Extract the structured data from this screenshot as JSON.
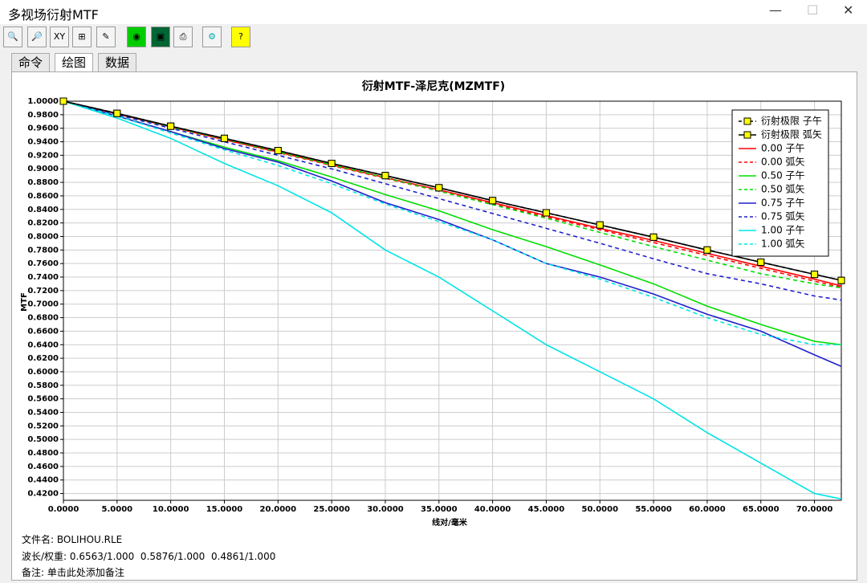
{
  "window": {
    "title": "多视场衍射MTF"
  },
  "tabs": [
    "命令",
    "绘图",
    "数据"
  ],
  "chart_data": {
    "type": "line",
    "title": "衍射MTF-泽尼克(MZMTF)",
    "x_label": "线对/毫米",
    "y_label": "MTF",
    "grid": true,
    "legend": "upper right",
    "xlim": [
      0,
      72.5
    ],
    "ylim": [
      0.41,
      1.0
    ],
    "xticks": [
      {
        "value": 0,
        "label": "0.0000"
      },
      {
        "value": 5,
        "label": "5.0000"
      },
      {
        "value": 10,
        "label": "10.0000"
      },
      {
        "value": 15,
        "label": "15.0000"
      },
      {
        "value": 20,
        "label": "20.0000"
      },
      {
        "value": 25,
        "label": "25.0000"
      },
      {
        "value": 30,
        "label": "30.0000"
      },
      {
        "value": 35,
        "label": "35.0000"
      },
      {
        "value": 40,
        "label": "40.0000"
      },
      {
        "value": 45,
        "label": "45.0000"
      },
      {
        "value": 50,
        "label": "50.0000"
      },
      {
        "value": 55,
        "label": "55.0000"
      },
      {
        "value": 60,
        "label": "60.0000"
      },
      {
        "value": 65,
        "label": "65.0000"
      },
      {
        "value": 70,
        "label": "70.0000"
      }
    ],
    "yticks": [
      {
        "value": 1.0,
        "label": "1.0000"
      },
      {
        "value": 0.98,
        "label": "0.9800"
      },
      {
        "value": 0.96,
        "label": "0.9600"
      },
      {
        "value": 0.94,
        "label": "0.9400"
      },
      {
        "value": 0.92,
        "label": "0.9200"
      },
      {
        "value": 0.9,
        "label": "0.9000"
      },
      {
        "value": 0.88,
        "label": "0.8800"
      },
      {
        "value": 0.86,
        "label": "0.8600"
      },
      {
        "value": 0.84,
        "label": "0.8400"
      },
      {
        "value": 0.82,
        "label": "0.8200"
      },
      {
        "value": 0.8,
        "label": "0.8000"
      },
      {
        "value": 0.78,
        "label": "0.7800"
      },
      {
        "value": 0.76,
        "label": "0.7600"
      },
      {
        "value": 0.74,
        "label": "0.7400"
      },
      {
        "value": 0.72,
        "label": "0.7200"
      },
      {
        "value": 0.7,
        "label": "0.7000"
      },
      {
        "value": 0.68,
        "label": "0.6800"
      },
      {
        "value": 0.66,
        "label": "0.6600"
      },
      {
        "value": 0.64,
        "label": "0.6400"
      },
      {
        "value": 0.62,
        "label": "0.6200"
      },
      {
        "value": 0.6,
        "label": "0.6000"
      },
      {
        "value": 0.58,
        "label": "0.5800"
      },
      {
        "value": 0.56,
        "label": "0.5600"
      },
      {
        "value": 0.54,
        "label": "0.5400"
      },
      {
        "value": 0.52,
        "label": "0.5200"
      },
      {
        "value": 0.5,
        "label": "0.5000"
      },
      {
        "value": 0.48,
        "label": "0.4800"
      },
      {
        "value": 0.46,
        "label": "0.4600"
      },
      {
        "value": 0.44,
        "label": "0.4400"
      },
      {
        "value": 0.42,
        "label": "0.4200"
      }
    ],
    "x": [
      0,
      5,
      10,
      15,
      20,
      25,
      30,
      35,
      40,
      45,
      50,
      55,
      60,
      65,
      70,
      72.5
    ],
    "series": [
      {
        "name": "衍射极限 子午",
        "color": "#000000",
        "marker": "square",
        "dashed": true,
        "values": [
          1.0,
          0.982,
          0.963,
          0.945,
          0.927,
          0.908,
          0.89,
          0.872,
          0.853,
          0.835,
          0.817,
          0.799,
          0.78,
          0.762,
          0.744,
          0.735
        ]
      },
      {
        "name": "衍射极限 弧矢",
        "color": "#000000",
        "marker": "square",
        "dashed": false,
        "values": [
          1.0,
          0.982,
          0.963,
          0.945,
          0.927,
          0.908,
          0.89,
          0.872,
          0.853,
          0.835,
          0.817,
          0.799,
          0.78,
          0.762,
          0.744,
          0.735
        ]
      },
      {
        "name": "0.00 子午",
        "color": "#ff0000",
        "dashed": false,
        "values": [
          1.0,
          0.981,
          0.962,
          0.943,
          0.925,
          0.906,
          0.887,
          0.869,
          0.85,
          0.831,
          0.812,
          0.794,
          0.775,
          0.756,
          0.737,
          0.727
        ]
      },
      {
        "name": "0.00 弧矢",
        "color": "#ff0000",
        "dashed": true,
        "values": [
          1.0,
          0.981,
          0.962,
          0.943,
          0.924,
          0.905,
          0.886,
          0.867,
          0.848,
          0.829,
          0.81,
          0.791,
          0.772,
          0.753,
          0.734,
          0.725
        ]
      },
      {
        "name": "0.50 子午",
        "color": "#00dd00",
        "dashed": false,
        "values": [
          1.0,
          0.978,
          0.955,
          0.932,
          0.912,
          0.888,
          0.862,
          0.838,
          0.81,
          0.785,
          0.758,
          0.73,
          0.697,
          0.67,
          0.645,
          0.64
        ]
      },
      {
        "name": "0.50 弧矢",
        "color": "#00dd00",
        "dashed": true,
        "values": [
          1.0,
          0.981,
          0.962,
          0.944,
          0.925,
          0.906,
          0.887,
          0.867,
          0.847,
          0.827,
          0.806,
          0.785,
          0.765,
          0.745,
          0.73,
          0.724
        ]
      },
      {
        "name": "0.75 子午",
        "color": "#2020cc",
        "dashed": false,
        "values": [
          1.0,
          0.978,
          0.955,
          0.93,
          0.91,
          0.882,
          0.85,
          0.825,
          0.795,
          0.76,
          0.74,
          0.715,
          0.685,
          0.66,
          0.625,
          0.608
        ]
      },
      {
        "name": "0.75 弧矢",
        "color": "#2020cc",
        "dashed": true,
        "values": [
          1.0,
          0.98,
          0.96,
          0.94,
          0.92,
          0.9,
          0.878,
          0.856,
          0.834,
          0.812,
          0.79,
          0.767,
          0.745,
          0.73,
          0.712,
          0.706
        ]
      },
      {
        "name": "1.00 子午",
        "color": "#00e5e5",
        "dashed": false,
        "values": [
          1.0,
          0.975,
          0.945,
          0.908,
          0.875,
          0.835,
          0.78,
          0.74,
          0.69,
          0.64,
          0.6,
          0.56,
          0.51,
          0.465,
          0.42,
          0.412
        ]
      },
      {
        "name": "1.00 弧矢",
        "color": "#00e5e5",
        "dashed": true,
        "values": [
          1.0,
          0.978,
          0.953,
          0.928,
          0.905,
          0.878,
          0.848,
          0.822,
          0.795,
          0.76,
          0.737,
          0.71,
          0.68,
          0.655,
          0.64,
          0.64
        ]
      }
    ]
  },
  "footer": {
    "file_label": "文件名:",
    "file": "BOLIHOU.RLE",
    "wavelength_label": "波长/权重:",
    "wavelength": "0.6563/1.000  0.5876/1.000  0.4861/1.000",
    "note_label": "备注:",
    "note": "单击此处添加备注"
  }
}
